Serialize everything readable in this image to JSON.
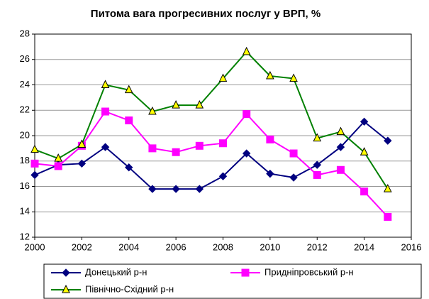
{
  "chart_data": {
    "type": "line",
    "title": "Питома вага прогресивних послуг у ВРП, %",
    "x": [
      2000,
      2001,
      2002,
      2003,
      2004,
      2005,
      2006,
      2007,
      2008,
      2009,
      2010,
      2011,
      2012,
      2013,
      2014,
      2015
    ],
    "series": [
      {
        "name": "Донецький р-н",
        "color": "#000080",
        "marker": "diamond",
        "marker_fill": "#000080",
        "values": [
          16.9,
          17.7,
          17.8,
          19.1,
          17.5,
          15.8,
          15.8,
          15.8,
          16.8,
          18.6,
          17.0,
          16.7,
          17.7,
          19.1,
          21.1,
          19.6
        ]
      },
      {
        "name": "Придніпровський р-н",
        "color": "#ff00ff",
        "marker": "square",
        "marker_fill": "#ff00ff",
        "values": [
          17.8,
          17.6,
          19.2,
          21.9,
          21.2,
          19.0,
          18.7,
          19.2,
          19.4,
          21.7,
          19.7,
          18.6,
          16.9,
          17.3,
          15.6,
          13.6
        ]
      },
      {
        "name": "Північно-Східний р-н",
        "color": "#008000",
        "marker": "triangle",
        "marker_fill": "#ffff00",
        "values": [
          18.9,
          18.2,
          19.3,
          24.0,
          23.6,
          21.9,
          22.4,
          22.4,
          24.5,
          26.6,
          24.7,
          24.5,
          19.8,
          20.3,
          18.7,
          15.8
        ]
      }
    ],
    "xlim": [
      2000,
      2016
    ],
    "xticks": [
      2000,
      2002,
      2004,
      2006,
      2008,
      2010,
      2012,
      2014,
      2016
    ],
    "ylim": [
      12,
      28
    ],
    "yticks": [
      12,
      14,
      16,
      18,
      20,
      22,
      24,
      26,
      28
    ],
    "grid": true,
    "legend": "bottom"
  }
}
